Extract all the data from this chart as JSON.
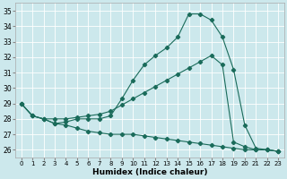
{
  "xlabel": "Humidex (Indice chaleur)",
  "bg_color": "#cce8ec",
  "grid_color": "#ffffff",
  "line_color": "#1a6b5a",
  "xlim": [
    -0.5,
    23.5
  ],
  "ylim": [
    25.5,
    35.5
  ],
  "yticks": [
    26,
    27,
    28,
    29,
    30,
    31,
    32,
    33,
    34,
    35
  ],
  "xticks": [
    0,
    1,
    2,
    3,
    4,
    5,
    6,
    7,
    8,
    9,
    10,
    11,
    12,
    13,
    14,
    15,
    16,
    17,
    18,
    19,
    20,
    21,
    22,
    23
  ],
  "line1_x": [
    0,
    1,
    2,
    3,
    4,
    5,
    6,
    7,
    8,
    9,
    10,
    11,
    12,
    13,
    14,
    15,
    16,
    17,
    18,
    19,
    20,
    21,
    22,
    23
  ],
  "line1_y": [
    29.0,
    28.2,
    28.0,
    27.7,
    27.6,
    27.4,
    27.2,
    27.1,
    27.0,
    27.0,
    27.0,
    26.9,
    26.8,
    26.7,
    26.6,
    26.5,
    26.4,
    26.3,
    26.2,
    26.1,
    26.0,
    26.0,
    26.0,
    25.9
  ],
  "line2_x": [
    0,
    1,
    2,
    3,
    4,
    5,
    6,
    7,
    8,
    9,
    10,
    11,
    12,
    13,
    14,
    15,
    16,
    17,
    18,
    19,
    20,
    21,
    22,
    23
  ],
  "line2_y": [
    29.0,
    28.2,
    28.0,
    27.7,
    27.8,
    28.0,
    28.0,
    28.0,
    28.2,
    29.3,
    30.5,
    31.5,
    32.1,
    32.6,
    33.3,
    34.8,
    34.8,
    34.4,
    33.3,
    31.2,
    27.6,
    26.1,
    26.0,
    25.9
  ],
  "line3_x": [
    0,
    1,
    2,
    3,
    4,
    5,
    6,
    7,
    8,
    9,
    10,
    11,
    12,
    13,
    14,
    15,
    16,
    17,
    18,
    19,
    20,
    21,
    22,
    23
  ],
  "line3_y": [
    29.0,
    28.2,
    28.0,
    28.0,
    28.0,
    28.1,
    28.2,
    28.3,
    28.5,
    28.9,
    29.3,
    29.7,
    30.1,
    30.5,
    30.9,
    31.3,
    31.7,
    32.1,
    31.5,
    26.5,
    26.2,
    26.0,
    26.0,
    25.9
  ]
}
